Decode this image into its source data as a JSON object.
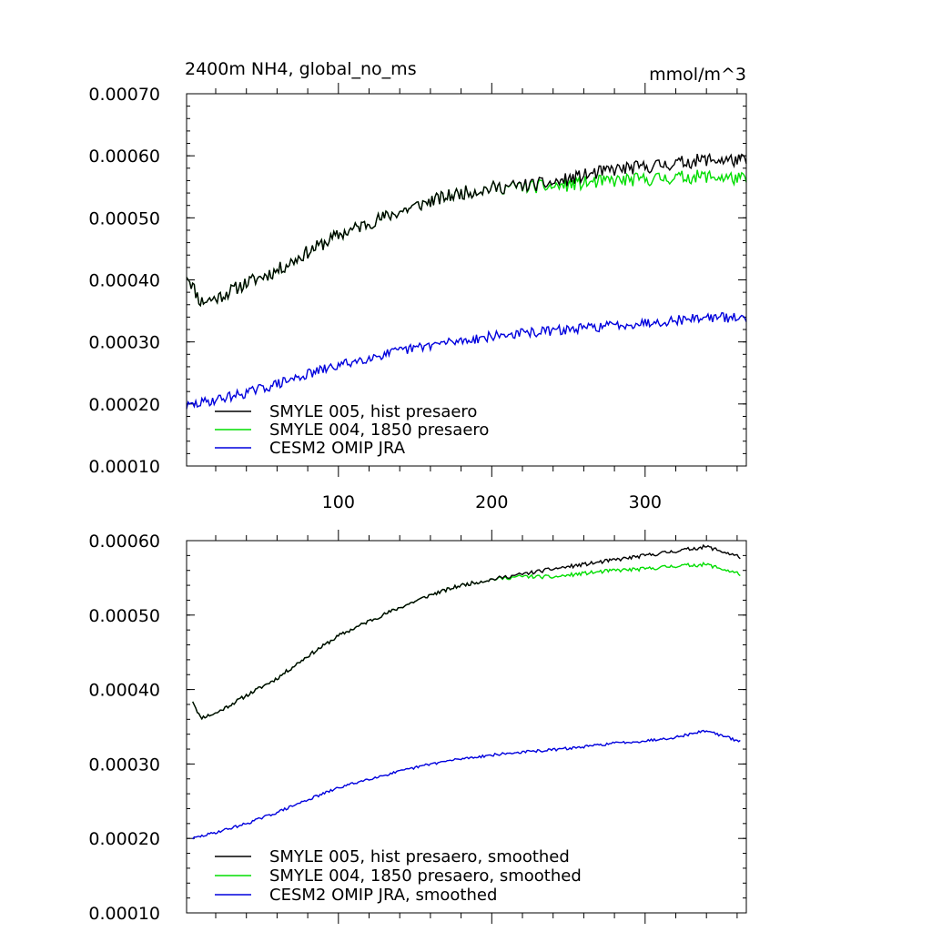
{
  "colors": {
    "hist": "#000000",
    "y1850": "#00dd00",
    "omip": "#0000dd"
  },
  "chart_data": [
    {
      "type": "line",
      "title": "2400m NH4, global_no_ms",
      "units": "mmol/m^3",
      "xlim": [
        1,
        366
      ],
      "ylim": [
        0.0001,
        0.0007
      ],
      "yticks": [
        "0.00010",
        "0.00020",
        "0.00030",
        "0.00040",
        "0.00050",
        "0.00060",
        "0.00070"
      ],
      "xticks": [
        "100",
        "200",
        "300"
      ],
      "legend_position": "bottom-left",
      "series": [
        {
          "name": "SMYLE 005, hist presaero",
          "color_key": "hist",
          "noise": 1.1e-05,
          "seed": 11,
          "x": [
            1,
            10,
            20,
            40,
            60,
            80,
            100,
            120,
            140,
            160,
            180,
            200,
            220,
            240,
            260,
            280,
            300,
            320,
            340,
            366
          ],
          "y": [
            0.00041,
            0.000365,
            0.00037,
            0.000395,
            0.000415,
            0.000445,
            0.000472,
            0.000492,
            0.00051,
            0.000527,
            0.00054,
            0.000548,
            0.000552,
            0.000556,
            0.000568,
            0.000578,
            0.000582,
            0.000588,
            0.000594,
            0.000592
          ]
        },
        {
          "name": "SMYLE 004, 1850 presaero",
          "color_key": "y1850",
          "noise": 1.1e-05,
          "seed": 11,
          "x": [
            1,
            10,
            20,
            40,
            60,
            80,
            100,
            120,
            140,
            160,
            180,
            200,
            220,
            240,
            260,
            280,
            300,
            320,
            340,
            366
          ],
          "y": [
            0.00041,
            0.000365,
            0.00037,
            0.000395,
            0.000415,
            0.000445,
            0.000472,
            0.000492,
            0.00051,
            0.000527,
            0.00054,
            0.000548,
            0.000551,
            0.00055,
            0.000556,
            0.00056,
            0.000562,
            0.000565,
            0.000567,
            0.000562
          ]
        },
        {
          "name": "CESM2 OMIP JRA",
          "color_key": "omip",
          "noise": 8e-06,
          "seed": 29,
          "x": [
            1,
            20,
            40,
            60,
            80,
            100,
            120,
            140,
            160,
            180,
            200,
            220,
            240,
            260,
            280,
            300,
            320,
            340,
            366
          ],
          "y": [
            0.000196,
            0.000207,
            0.000218,
            0.000232,
            0.000248,
            0.000262,
            0.000275,
            0.000285,
            0.000295,
            0.000302,
            0.000309,
            0.000314,
            0.000318,
            0.000322,
            0.000327,
            0.000331,
            0.000335,
            0.00034,
            0.000338
          ]
        }
      ]
    },
    {
      "type": "line",
      "title": "",
      "units": "",
      "xlim": [
        1,
        366
      ],
      "ylim": [
        0.0001,
        0.0006
      ],
      "yticks": [
        "0.00010",
        "0.00020",
        "0.00030",
        "0.00040",
        "0.00050",
        "0.00060"
      ],
      "xticks": [],
      "legend_position": "bottom-left",
      "series": [
        {
          "name": "SMYLE 005, hist presaero, smoothed",
          "color_key": "hist",
          "noise": 2.5e-06,
          "seed": 11,
          "x": [
            5,
            10,
            20,
            40,
            60,
            80,
            100,
            120,
            140,
            160,
            180,
            200,
            220,
            240,
            260,
            280,
            300,
            320,
            340,
            362
          ],
          "y": [
            0.000385,
            0.000362,
            0.000368,
            0.000392,
            0.000415,
            0.000445,
            0.000472,
            0.000492,
            0.00051,
            0.000527,
            0.00054,
            0.000548,
            0.000555,
            0.000562,
            0.000568,
            0.000574,
            0.00058,
            0.000586,
            0.000592,
            0.000578
          ]
        },
        {
          "name": "SMYLE 004, 1850 presaero, smoothed",
          "color_key": "y1850",
          "noise": 2.5e-06,
          "seed": 11,
          "x": [
            5,
            10,
            20,
            40,
            60,
            80,
            100,
            120,
            140,
            160,
            180,
            200,
            220,
            240,
            260,
            280,
            300,
            320,
            340,
            362
          ],
          "y": [
            0.000385,
            0.000362,
            0.000368,
            0.000392,
            0.000415,
            0.000445,
            0.000472,
            0.000492,
            0.00051,
            0.000527,
            0.00054,
            0.000548,
            0.000552,
            0.000551,
            0.000556,
            0.00056,
            0.000562,
            0.000566,
            0.000568,
            0.000555
          ]
        },
        {
          "name": "CESM2 OMIP JRA, smoothed",
          "color_key": "omip",
          "noise": 1.8e-06,
          "seed": 29,
          "x": [
            5,
            20,
            40,
            60,
            80,
            100,
            120,
            140,
            160,
            180,
            200,
            220,
            240,
            260,
            280,
            300,
            320,
            340,
            362
          ],
          "y": [
            0.0002,
            0.000208,
            0.00022,
            0.000235,
            0.000252,
            0.000268,
            0.00028,
            0.00029,
            0.0003,
            0.000307,
            0.000312,
            0.000316,
            0.000319,
            0.000323,
            0.000328,
            0.000331,
            0.000336,
            0.000345,
            0.00033
          ]
        }
      ]
    }
  ]
}
